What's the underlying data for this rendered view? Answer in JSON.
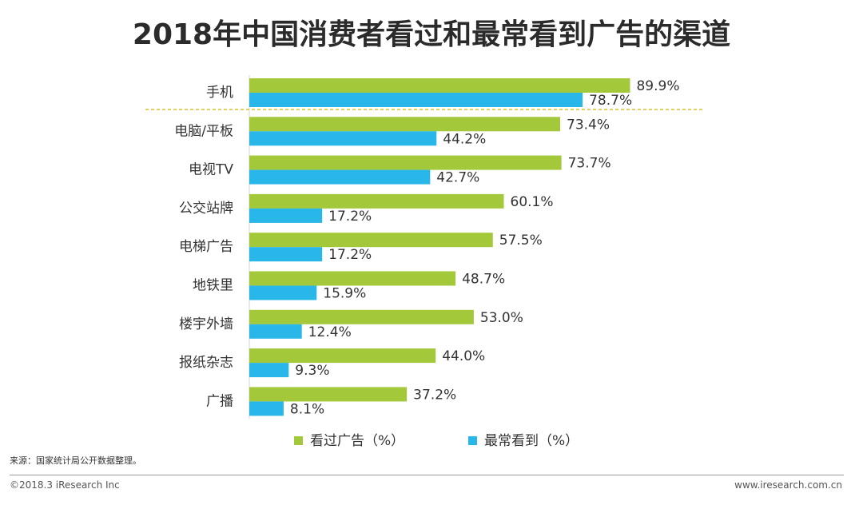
{
  "chart_data": {
    "type": "bar",
    "orientation": "horizontal",
    "title": "2018年中国消费者看过和最常看到广告的渠道",
    "categories": [
      "手机",
      "电脑/平板",
      "电视TV",
      "公交站牌",
      "电梯广告",
      "地铁里",
      "楼宇外墙",
      "报纸杂志",
      "广播"
    ],
    "series": [
      {
        "name": "看过广告（%）",
        "color": "#a3c83a",
        "values": [
          89.9,
          73.4,
          73.7,
          60.1,
          57.5,
          48.7,
          53.0,
          44.0,
          37.2
        ]
      },
      {
        "name": "最常看到（%）",
        "color": "#29b6e8",
        "values": [
          78.7,
          44.2,
          42.7,
          17.2,
          17.2,
          15.9,
          12.4,
          9.3,
          8.1
        ]
      }
    ],
    "value_labels": [
      [
        "89.9%",
        "73.4%",
        "73.7%",
        "60.1%",
        "57.5%",
        "48.7%",
        "53.0%",
        "44.0%",
        "37.2%"
      ],
      [
        "78.7%",
        "44.2%",
        "42.7%",
        "17.2%",
        "17.2%",
        "15.9%",
        "12.4%",
        "9.3%",
        "8.1%"
      ]
    ],
    "xlim": [
      0,
      100
    ],
    "grid": false,
    "legend_position": "bottom"
  },
  "footer": {
    "source": "来源：国家统计局公开数据整理。",
    "copyright": "©2018.3 iResearch Inc",
    "website": "www.iresearch.com.cn"
  }
}
